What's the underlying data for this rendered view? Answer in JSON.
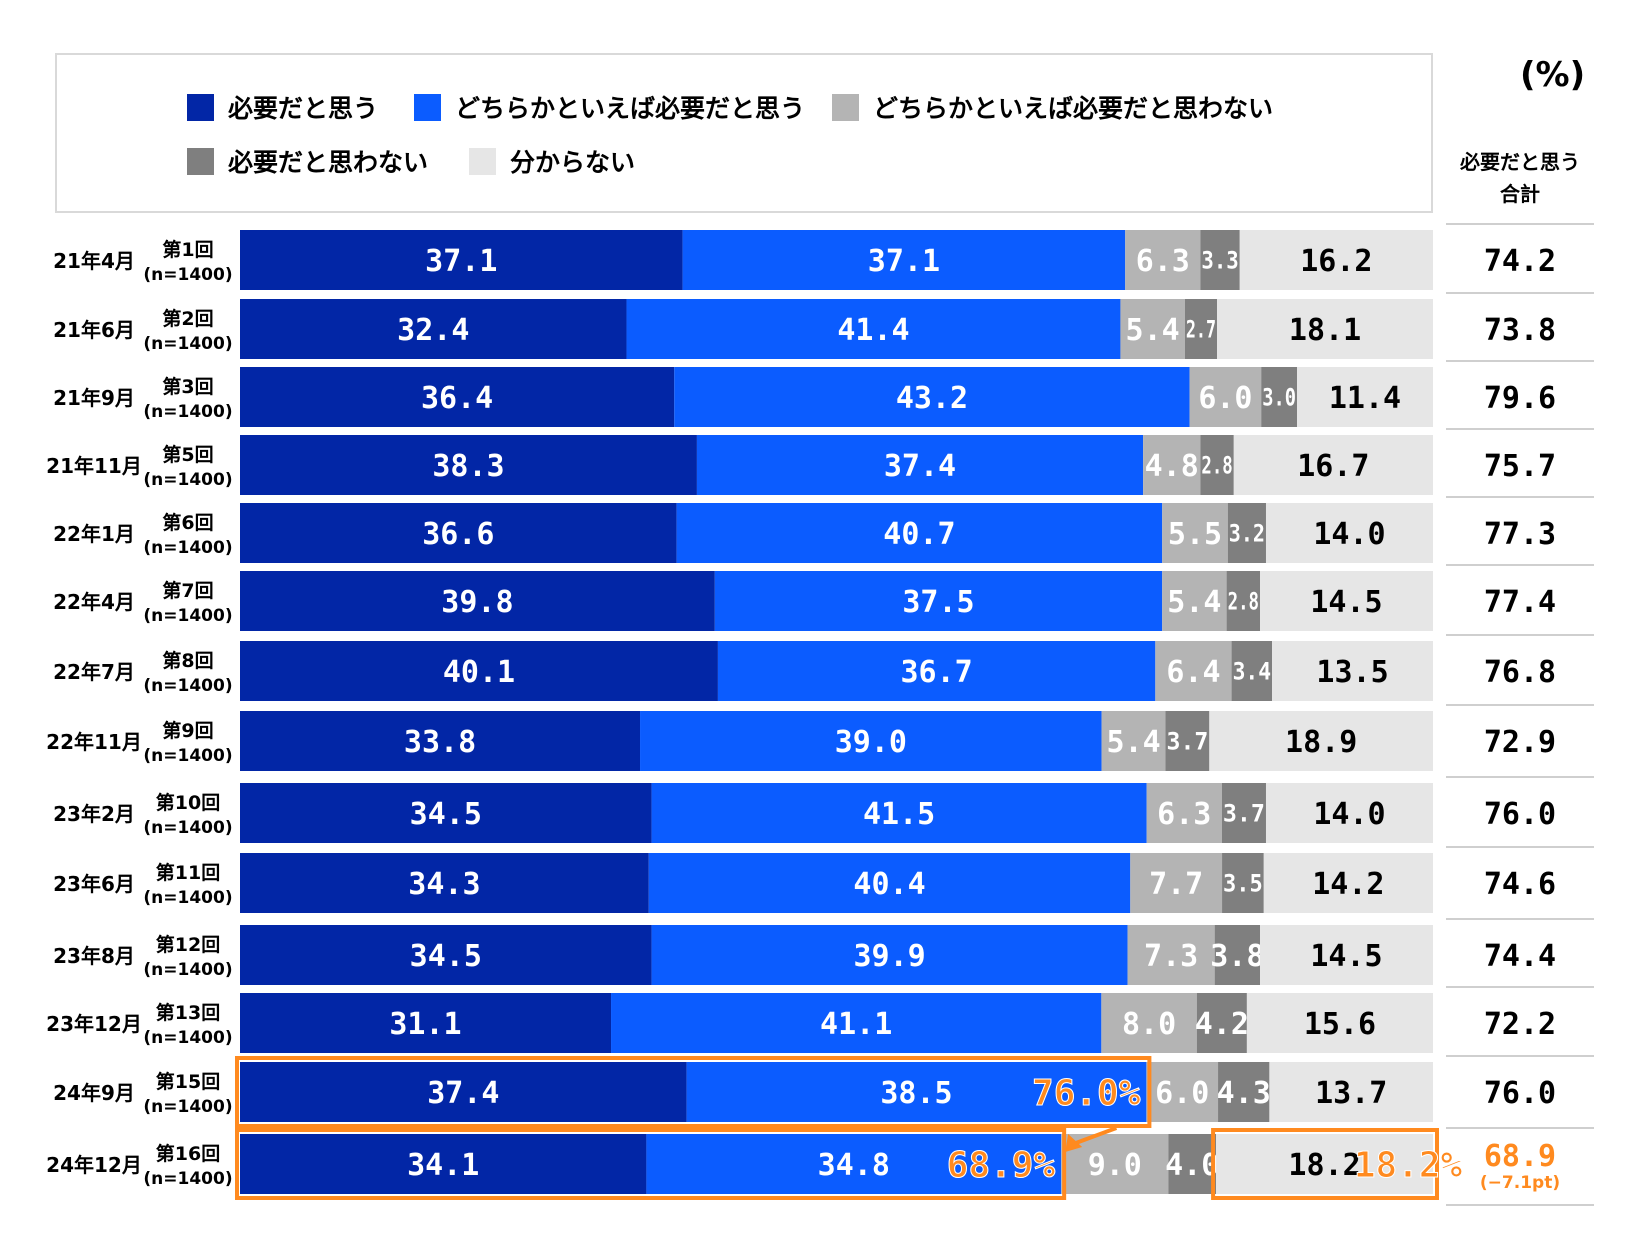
{
  "unit": "(%)",
  "total_header_line1": "必要だと思う",
  "total_header_line2": "合計",
  "colors": {
    "strongly_needed": "#0226a6",
    "somewhat_needed": "#0b5cff",
    "somewhat_not_needed": "#b4b4b4",
    "not_needed": "#7f7f7f",
    "dont_know": "#e6e6e6",
    "highlight": "#ff8a1f"
  },
  "legend": [
    {
      "label": "必要だと思う",
      "color": "#0226a6"
    },
    {
      "label": "どちらかといえば必要だと思う",
      "color": "#0b5cff"
    },
    {
      "label": "どちらかといえば必要だと思わない",
      "color": "#b4b4b4"
    },
    {
      "label": "必要だと思わない",
      "color": "#7f7f7f"
    },
    {
      "label": "分からない",
      "color": "#e6e6e6"
    }
  ],
  "chart_data": {
    "type": "bar",
    "orientation": "horizontal-stacked-100",
    "series_names": [
      "必要だと思う",
      "どちらかといえば必要だと思う",
      "どちらかといえば必要だと思わない",
      "必要だと思わない",
      "分からない"
    ],
    "rows": [
      {
        "date": "21年4月",
        "wave": "第1回",
        "n": "(n=1400)",
        "values": [
          37.1,
          37.1,
          6.3,
          3.3,
          16.2
        ],
        "labels": [
          "37.1",
          "37.1",
          "6.3",
          "3.3",
          "16.2"
        ],
        "total": "74.2"
      },
      {
        "date": "21年6月",
        "wave": "第2回",
        "n": "(n=1400)",
        "values": [
          32.4,
          41.4,
          5.4,
          2.7,
          18.1
        ],
        "labels": [
          "32.4",
          "41.4",
          "5.4",
          "2.7",
          "18.1"
        ],
        "total": "73.8"
      },
      {
        "date": "21年9月",
        "wave": "第3回",
        "n": "(n=1400)",
        "values": [
          36.4,
          43.2,
          6.0,
          3.0,
          11.4
        ],
        "labels": [
          "36.4",
          "43.2",
          "6.0",
          "3.0",
          "11.4"
        ],
        "total": "79.6"
      },
      {
        "date": "21年11月",
        "wave": "第5回",
        "n": "(n=1400)",
        "values": [
          38.3,
          37.4,
          4.8,
          2.8,
          16.7
        ],
        "labels": [
          "38.3",
          "37.4",
          "4.8",
          "2.8",
          "16.7"
        ],
        "total": "75.7"
      },
      {
        "date": "22年1月",
        "wave": "第6回",
        "n": "(n=1400)",
        "values": [
          36.6,
          40.7,
          5.5,
          3.2,
          14.0
        ],
        "labels": [
          "36.6",
          "40.7",
          "5.5",
          "3.2",
          "14.0"
        ],
        "total": "77.3"
      },
      {
        "date": "22年4月",
        "wave": "第7回",
        "n": "(n=1400)",
        "values": [
          39.8,
          37.5,
          5.4,
          2.8,
          14.5
        ],
        "labels": [
          "39.8",
          "37.5",
          "5.4",
          "2.8",
          "14.5"
        ],
        "total": "77.4"
      },
      {
        "date": "22年7月",
        "wave": "第8回",
        "n": "(n=1400)",
        "values": [
          40.1,
          36.7,
          6.4,
          3.4,
          13.5
        ],
        "labels": [
          "40.1",
          "36.7",
          "6.4",
          "3.4",
          "13.5"
        ],
        "total": "76.8"
      },
      {
        "date": "22年11月",
        "wave": "第9回",
        "n": "(n=1400)",
        "values": [
          33.8,
          39.0,
          5.4,
          3.7,
          18.9
        ],
        "labels": [
          "33.8",
          "39.0",
          "5.4",
          "3.7",
          "18.9"
        ],
        "total": "72.9"
      },
      {
        "date": "23年2月",
        "wave": "第10回",
        "n": "(n=1400)",
        "values": [
          34.5,
          41.5,
          6.3,
          3.7,
          14.0
        ],
        "labels": [
          "34.5",
          "41.5",
          "6.3",
          "3.7",
          "14.0"
        ],
        "total": "76.0"
      },
      {
        "date": "23年6月",
        "wave": "第11回",
        "n": "(n=1400)",
        "values": [
          34.3,
          40.4,
          7.7,
          3.5,
          14.2
        ],
        "labels": [
          "34.3",
          "40.4",
          "7.7",
          "3.5",
          "14.2"
        ],
        "total": "74.6"
      },
      {
        "date": "23年8月",
        "wave": "第12回",
        "n": "(n=1400)",
        "values": [
          34.5,
          39.9,
          7.3,
          3.8,
          14.5
        ],
        "labels": [
          "34.5",
          "39.9",
          "7.3",
          "3.8",
          "14.5"
        ],
        "total": "74.4"
      },
      {
        "date": "23年12月",
        "wave": "第13回",
        "n": "(n=1400)",
        "values": [
          31.1,
          41.1,
          8.0,
          4.2,
          15.6
        ],
        "labels": [
          "31.1",
          "41.1",
          "8.0",
          "4.2",
          "15.6"
        ],
        "total": "72.2"
      },
      {
        "date": "24年9月",
        "wave": "第15回",
        "n": "(n=1400)",
        "values": [
          37.4,
          38.5,
          6.0,
          4.3,
          13.7
        ],
        "labels": [
          "37.4",
          "38.5",
          "6.0",
          "4.3",
          "13.7"
        ],
        "total": "76.0"
      },
      {
        "date": "24年12月",
        "wave": "第16回",
        "n": "(n=1400)",
        "values": [
          34.1,
          34.8,
          9.0,
          4.0,
          18.2
        ],
        "labels": [
          "34.1",
          "34.8",
          "9.0",
          "4.0",
          "18.2"
        ],
        "total": "68.9",
        "total_note": "(−7.1pt)"
      }
    ],
    "highlights": [
      {
        "row": 12,
        "text": "76.0%"
      },
      {
        "row": 13,
        "text": "68.9%"
      },
      {
        "row": 13,
        "text": "18.2%",
        "segment": "分からない"
      }
    ]
  }
}
